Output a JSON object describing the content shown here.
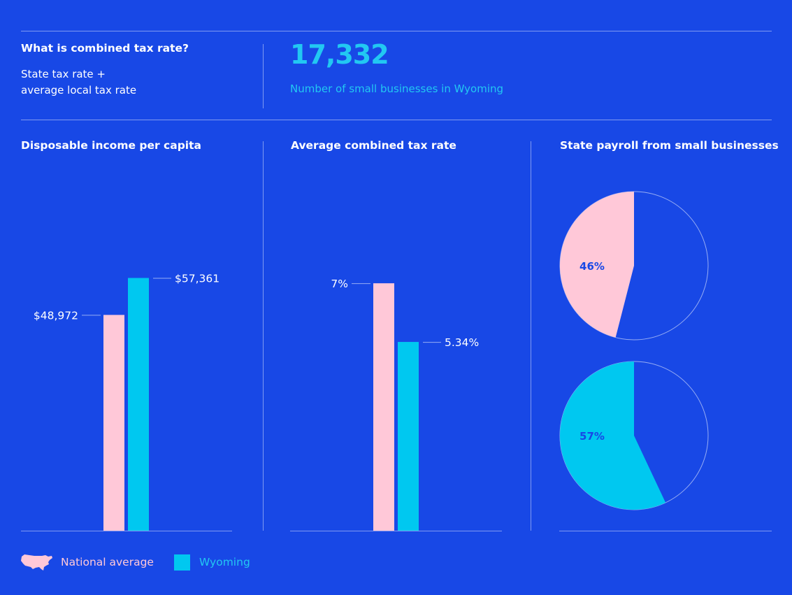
{
  "colors": {
    "background": "#1848e6",
    "national": "#ffc8d8",
    "wyoming": "#00c8f0",
    "pie_label": "#1848e6"
  },
  "definition": {
    "title": "What is combined tax rate?",
    "body_line1": "State tax rate +",
    "body_line2": "average local tax rate"
  },
  "stat": {
    "number": "17,332",
    "label": "Number of small businesses in Wyoming"
  },
  "legend": {
    "national_label": "National average",
    "wyoming_label": "Wyoming",
    "national_icon": "us-map-icon",
    "wyoming_icon": "square-swatch-icon"
  },
  "chart_data": [
    {
      "type": "bar",
      "title": "Disposable income per capita",
      "categories": [
        "National average",
        "Wyoming"
      ],
      "values": [
        48972,
        57361
      ],
      "value_labels": [
        "$48,972",
        "$57,361"
      ],
      "ylim": [
        0,
        73000
      ]
    },
    {
      "type": "bar",
      "title": "Average combined tax rate",
      "categories": [
        "National average",
        "Wyoming"
      ],
      "values": [
        7,
        5.34
      ],
      "value_labels": [
        "7%",
        "5.34%"
      ],
      "ylim": [
        0,
        9.1
      ]
    },
    {
      "type": "pie",
      "title": "State payroll from small businesses",
      "pies": [
        {
          "name": "National average",
          "value": 46,
          "label": "46%"
        },
        {
          "name": "Wyoming",
          "value": 57,
          "label": "57%"
        }
      ]
    }
  ]
}
